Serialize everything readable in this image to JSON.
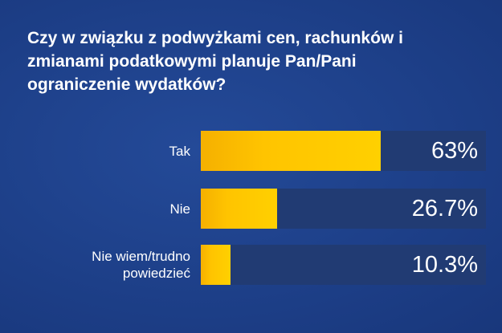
{
  "chart_data": {
    "type": "bar",
    "orientation": "horizontal",
    "title": "Czy w związku z podwyżkami cen, rachunków i\nzmianami podatkowymi planuje Pan/Pani\nograniczenie wydatków?",
    "categories": [
      "Tak",
      "Nie",
      "Nie wiem/trudno\npowiedzieć"
    ],
    "values": [
      63,
      26.7,
      10.3
    ],
    "value_labels": [
      "63%",
      "26.7%",
      "10.3%"
    ],
    "unit": "%",
    "xlim": [
      0,
      100
    ],
    "grid": false,
    "legend": "none",
    "colors": {
      "background": "#1d3f88",
      "track": "#213b73",
      "bar": "#ffc400",
      "text": "#ffffff"
    }
  }
}
